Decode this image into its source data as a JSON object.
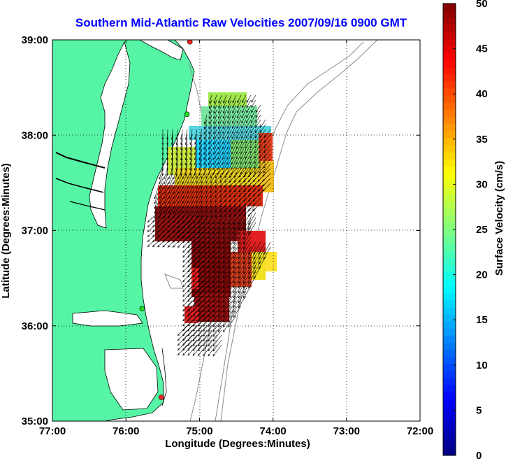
{
  "title": "Southern Mid-Atlantic Raw Velocities 2007/09/16 0900 GMT",
  "map": {
    "xlabel": "Longitude (Degrees:Minutes)",
    "ylabel": "Latitude (Degrees:Minutes)",
    "lon_range": [
      -77,
      -72
    ],
    "lat_range": [
      35,
      39
    ],
    "x_ticks": [
      {
        "value": -77,
        "label": "77:00"
      },
      {
        "value": -76,
        "label": "76:00"
      },
      {
        "value": -75,
        "label": "75:00"
      },
      {
        "value": -74,
        "label": "74:00"
      },
      {
        "value": -73,
        "label": "73:00"
      },
      {
        "value": -72,
        "label": "72:00"
      }
    ],
    "y_ticks": [
      {
        "value": 39,
        "label": "39:00"
      },
      {
        "value": 38,
        "label": "38:00"
      },
      {
        "value": 37,
        "label": "37:00"
      },
      {
        "value": 36,
        "label": "36:00"
      },
      {
        "value": 35,
        "label": "35:00"
      }
    ],
    "grid": "dotted",
    "land_color": "#55f5a5",
    "coastline_color": "#000000",
    "bathymetry_color": "#8c8c8c",
    "station_marker_color": "#ff2020",
    "station_active_color": "#22dd22"
  },
  "colorbar": {
    "label": "Surface Velocity (cm/s)",
    "min": 0,
    "max": 50,
    "tick_labels": [
      "0",
      "5",
      "10",
      "15",
      "20",
      "25",
      "30",
      "35",
      "40",
      "45",
      "50"
    ],
    "colormap": "jet"
  },
  "chart_data": {
    "type": "heatmap",
    "title": "Southern Mid-Atlantic Raw Velocities 2007/09/16 0900 GMT",
    "xlabel": "Longitude (Degrees:Minutes)",
    "ylabel": "Latitude (Degrees:Minutes)",
    "xlim": [
      -77,
      -72
    ],
    "ylim": [
      35,
      39
    ],
    "value_label": "Surface Velocity (cm/s)",
    "value_range": [
      0,
      50
    ],
    "stations": [
      {
        "lon": -75.13,
        "lat": 38.98,
        "state": "red"
      },
      {
        "lon": -75.17,
        "lat": 38.22,
        "state": "green"
      },
      {
        "lon": -75.78,
        "lat": 36.18,
        "state": "green"
      },
      {
        "lon": -75.52,
        "lat": 35.25,
        "state": "red"
      }
    ]
  }
}
